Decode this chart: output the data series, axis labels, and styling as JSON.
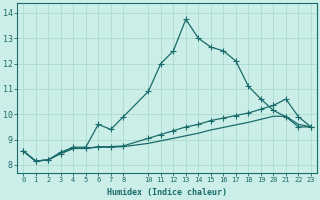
{
  "xlabel": "Humidex (Indice chaleur)",
  "bg_color": "#cceee8",
  "grid_color": "#aaddcc",
  "line_color": "#1a6b6b",
  "xlim": [
    -0.5,
    23.5
  ],
  "ylim": [
    7.7,
    14.4
  ],
  "xticks": [
    0,
    1,
    2,
    3,
    4,
    5,
    6,
    7,
    8,
    10,
    11,
    12,
    13,
    14,
    15,
    16,
    17,
    18,
    19,
    20,
    21,
    22,
    23
  ],
  "xtick_labels": [
    "0",
    "1",
    "2",
    "3",
    "4",
    "5",
    "6",
    "7",
    "8",
    "10",
    "11",
    "12",
    "13",
    "14",
    "15",
    "16",
    "17",
    "18",
    "19",
    "20",
    "21",
    "22",
    "23"
  ],
  "yticks": [
    8,
    9,
    10,
    11,
    12,
    13,
    14
  ],
  "line1_x": [
    0,
    1,
    2,
    3,
    4,
    5,
    6,
    7,
    8,
    10,
    11,
    12,
    13,
    14,
    15,
    16,
    17,
    18,
    19,
    20,
    21,
    22,
    23
  ],
  "line1_y": [
    8.55,
    8.15,
    8.2,
    8.5,
    8.7,
    8.7,
    9.6,
    9.4,
    9.9,
    10.9,
    12.0,
    12.5,
    13.75,
    13.0,
    12.65,
    12.5,
    12.1,
    11.1,
    10.6,
    10.15,
    9.9,
    9.5,
    9.5
  ],
  "line2_x": [
    0,
    1,
    2,
    3,
    4,
    5,
    6,
    7,
    8,
    10,
    11,
    12,
    13,
    14,
    15,
    16,
    17,
    18,
    19,
    20,
    21,
    22,
    23
  ],
  "line2_y": [
    8.55,
    8.15,
    8.2,
    8.45,
    8.65,
    8.65,
    8.72,
    8.72,
    8.75,
    9.05,
    9.2,
    9.35,
    9.5,
    9.6,
    9.75,
    9.85,
    9.95,
    10.05,
    10.2,
    10.35,
    10.6,
    9.9,
    9.5
  ],
  "line3_x": [
    0,
    1,
    2,
    3,
    4,
    5,
    6,
    7,
    8,
    10,
    11,
    12,
    13,
    14,
    15,
    16,
    17,
    18,
    19,
    20,
    21,
    22,
    23
  ],
  "line3_y": [
    8.55,
    8.15,
    8.2,
    8.45,
    8.65,
    8.65,
    8.7,
    8.7,
    8.72,
    8.85,
    8.95,
    9.05,
    9.15,
    9.25,
    9.38,
    9.48,
    9.58,
    9.68,
    9.8,
    9.92,
    9.92,
    9.6,
    9.5
  ]
}
